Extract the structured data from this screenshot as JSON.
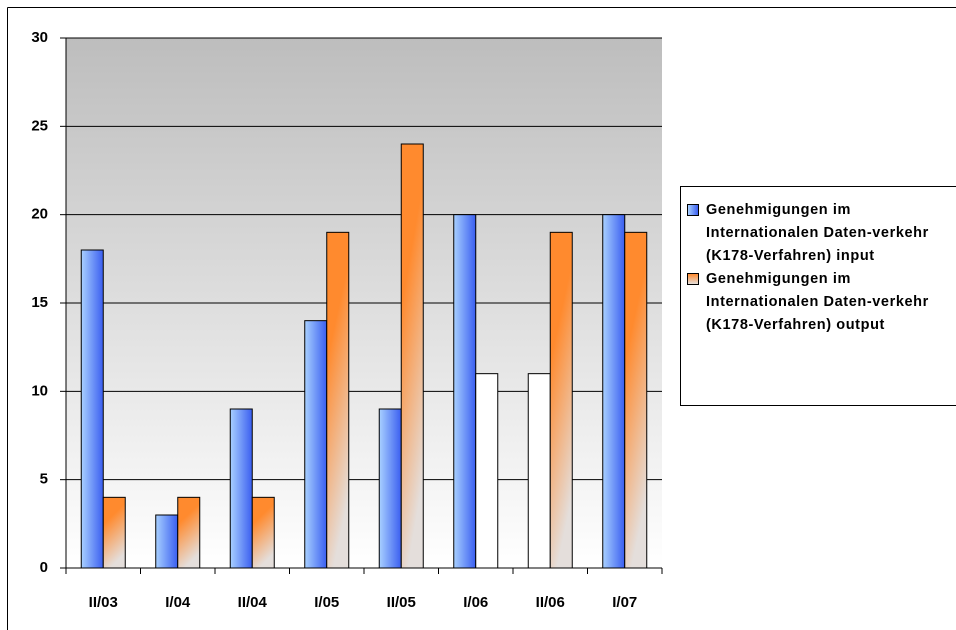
{
  "chart_data": {
    "type": "bar",
    "categories": [
      "II/03",
      "I/04",
      "II/04",
      "I/05",
      "II/05",
      "I/06",
      "II/06",
      "I/07"
    ],
    "series": [
      {
        "name": "Genehmigungen im Internationalen Daten-verkehr (K178-Verfahren) input",
        "color": "#3a5ef0",
        "colors": [
          "#3a5ef0",
          "#3a5ef0",
          "#3a5ef0",
          "#3a5ef0",
          "#3a5ef0",
          "#3a5ef0",
          "#ffffff",
          "#3a5ef0"
        ],
        "values": [
          18,
          3,
          9,
          14,
          9,
          20,
          11,
          20
        ]
      },
      {
        "name": "Genehmigungen im Internationalen Daten-verkehr (K178-Verfahren) output",
        "color": "#ff8a2e",
        "colors": [
          "#ff8a2e",
          "#ff8a2e",
          "#ff8a2e",
          "#ff8a2e",
          "#ff8a2e",
          "#ffffff",
          "#ff8a2e",
          "#ff8a2e"
        ],
        "values": [
          4,
          4,
          4,
          19,
          24,
          11,
          19,
          19
        ]
      }
    ],
    "ylim": [
      0,
      30
    ],
    "yticks": [
      0,
      5,
      10,
      15,
      20,
      25,
      30
    ],
    "grid": true,
    "legend": "right"
  }
}
